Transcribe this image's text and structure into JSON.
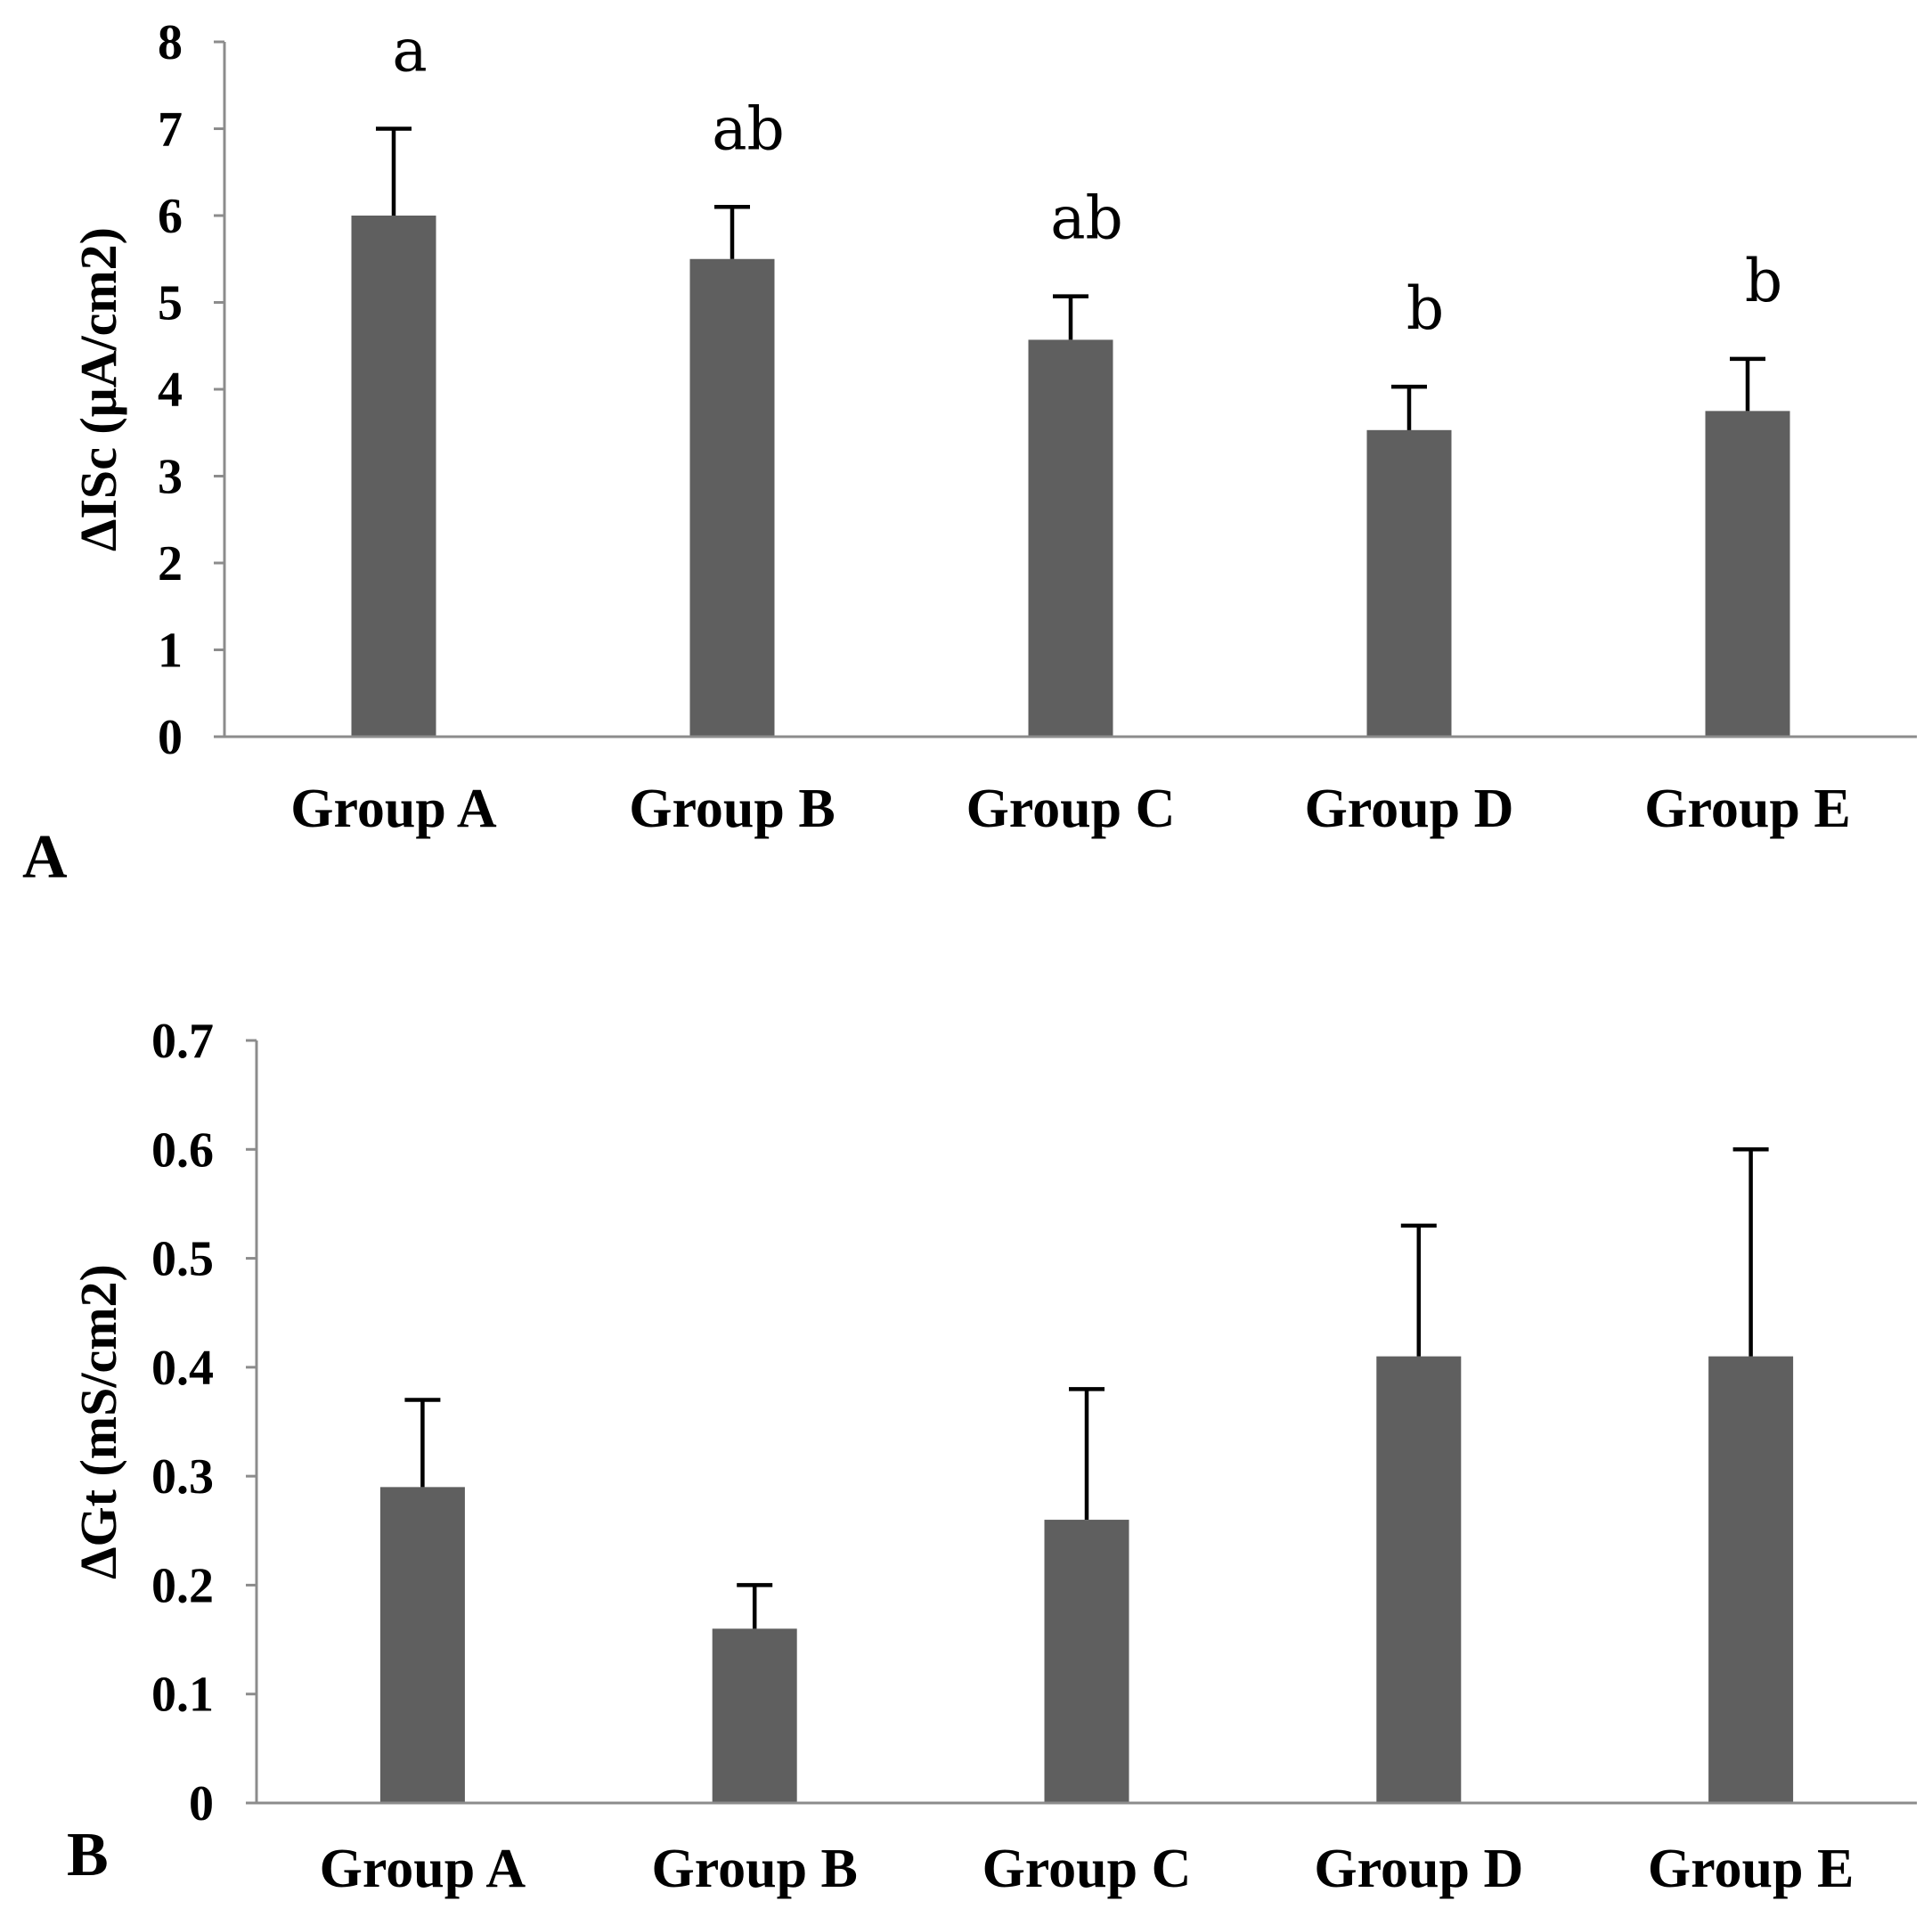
{
  "colors": {
    "bar": "#5f5f5f",
    "axis": "#8c8c8c",
    "error_bar": "#000000"
  },
  "chart_data": [
    {
      "type": "bar",
      "panel_label": "A",
      "categories": [
        "Group A",
        "Group B",
        "Group C",
        "Group D",
        "Group E"
      ],
      "values": [
        6.0,
        5.5,
        4.57,
        3.53,
        3.75
      ],
      "error_upper": [
        7.0,
        6.1,
        5.07,
        4.03,
        4.35
      ],
      "significance_labels": [
        "a",
        "ab",
        "ab",
        "b",
        "b"
      ],
      "ylabel": "ΔISc (μA/cm2)",
      "xlabel": "",
      "ylim": [
        0,
        8
      ],
      "yticks": [
        "0",
        "1",
        "2",
        "3",
        "4",
        "5",
        "6",
        "7",
        "8"
      ],
      "grid": false,
      "legend": "none"
    },
    {
      "type": "bar",
      "panel_label": "B",
      "categories": [
        "Group A",
        "Group B",
        "Group C",
        "Group D",
        "Group E"
      ],
      "values": [
        0.29,
        0.16,
        0.26,
        0.41,
        0.41
      ],
      "error_upper": [
        0.37,
        0.2,
        0.38,
        0.53,
        0.6
      ],
      "significance_labels": [],
      "ylabel": "ΔGt (mS/cm2)",
      "xlabel": "",
      "ylim": [
        0,
        0.7
      ],
      "yticks": [
        "0",
        "0.1",
        "0.2",
        "0.3",
        "0.4",
        "0.5",
        "0.6",
        "0.7"
      ],
      "grid": false,
      "legend": "none"
    }
  ]
}
